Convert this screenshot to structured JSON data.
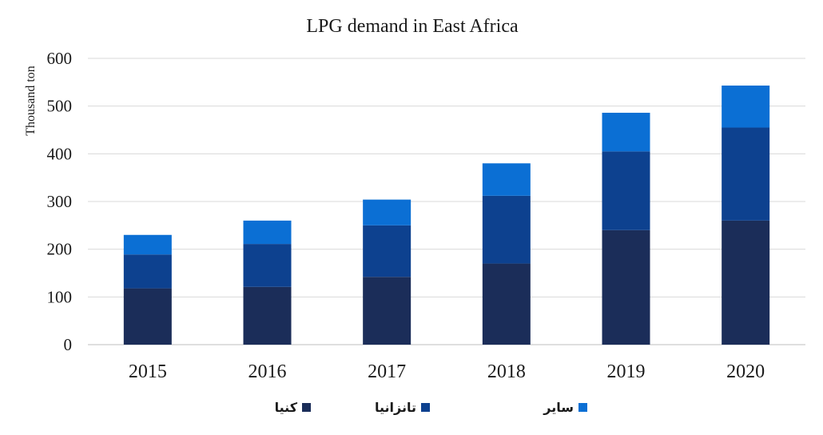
{
  "chart_data": {
    "type": "bar",
    "stacked": true,
    "title": "LPG demand in East Africa",
    "xlabel": "",
    "ylabel": "Thousand ton",
    "ylim": [
      0,
      600
    ],
    "yticks": [
      "0",
      "100",
      "200",
      "300",
      "400",
      "500",
      "600"
    ],
    "grid": true,
    "legend_position": "bottom",
    "categories": [
      "2015",
      "2016",
      "2017",
      "2018",
      "2019",
      "2020"
    ],
    "series": [
      {
        "name": "کنیا",
        "color": "#1b2d59",
        "values": [
          118,
          121,
          142,
          170,
          240,
          260
        ]
      },
      {
        "name": "تانزانیا",
        "color": "#0d418f",
        "values": [
          71,
          90,
          108,
          142,
          165,
          195
        ]
      },
      {
        "name": "سایر",
        "color": "#0b6fd4",
        "values": [
          41,
          49,
          54,
          68,
          81,
          88
        ]
      }
    ]
  }
}
